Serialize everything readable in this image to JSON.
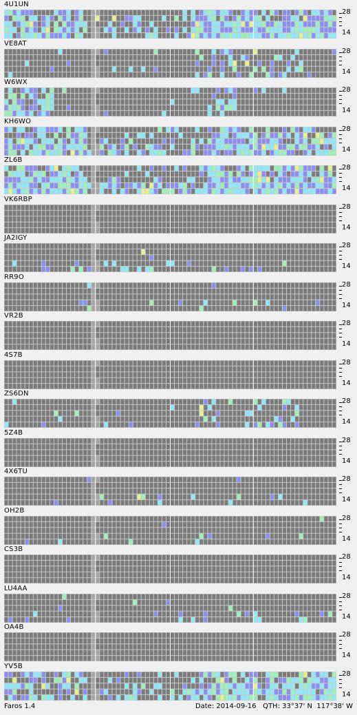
{
  "app": {
    "name": "Faros 1.4",
    "date_label": "Date:",
    "date": "2014-09-16",
    "qth_label": "QTH:",
    "qth_lat": "33°37' N",
    "qth_lon": "117°38' W"
  },
  "axis": {
    "top": "28",
    "bottom": "14"
  },
  "colors": {
    "background": "#f0f0f0",
    "cell_empty": "#7b7b7b",
    "cell_light_gray": "#a4a4a4",
    "grid_line": "#c8c8c8",
    "signal_weak": "#8a8ef0",
    "signal_medium": "#8ee8f8",
    "signal_strong": "#9cf0b8",
    "signal_peak": "#e8f090"
  },
  "stations": [
    {
      "call": "4U1UN",
      "activity": 0.72,
      "pattern": "east"
    },
    {
      "call": "VE8AT",
      "activity": 0.22,
      "pattern": "mid"
    },
    {
      "call": "W6WX",
      "activity": 0.32,
      "pattern": "local"
    },
    {
      "call": "KH6WO",
      "activity": 0.55,
      "pattern": "wide"
    },
    {
      "call": "ZL6B",
      "activity": 0.62,
      "pattern": "wide"
    },
    {
      "call": "VK6RBP",
      "activity": 0.0,
      "pattern": "none"
    },
    {
      "call": "JA2IGY",
      "activity": 0.08,
      "pattern": "low"
    },
    {
      "call": "RR9O",
      "activity": 0.04,
      "pattern": "low"
    },
    {
      "call": "VR2B",
      "activity": 0.0,
      "pattern": "none"
    },
    {
      "call": "4S7B",
      "activity": 0.0,
      "pattern": "none"
    },
    {
      "call": "ZS6DN",
      "activity": 0.12,
      "pattern": "mid"
    },
    {
      "call": "5Z4B",
      "activity": 0.0,
      "pattern": "none"
    },
    {
      "call": "4X6TU",
      "activity": 0.05,
      "pattern": "low"
    },
    {
      "call": "OH2B",
      "activity": 0.05,
      "pattern": "low"
    },
    {
      "call": "CS3B",
      "activity": 0.0,
      "pattern": "none"
    },
    {
      "call": "LU4AA",
      "activity": 0.08,
      "pattern": "low"
    },
    {
      "call": "OA4B",
      "activity": 0.0,
      "pattern": "none"
    },
    {
      "call": "YV5B",
      "activity": 0.58,
      "pattern": "east"
    }
  ]
}
